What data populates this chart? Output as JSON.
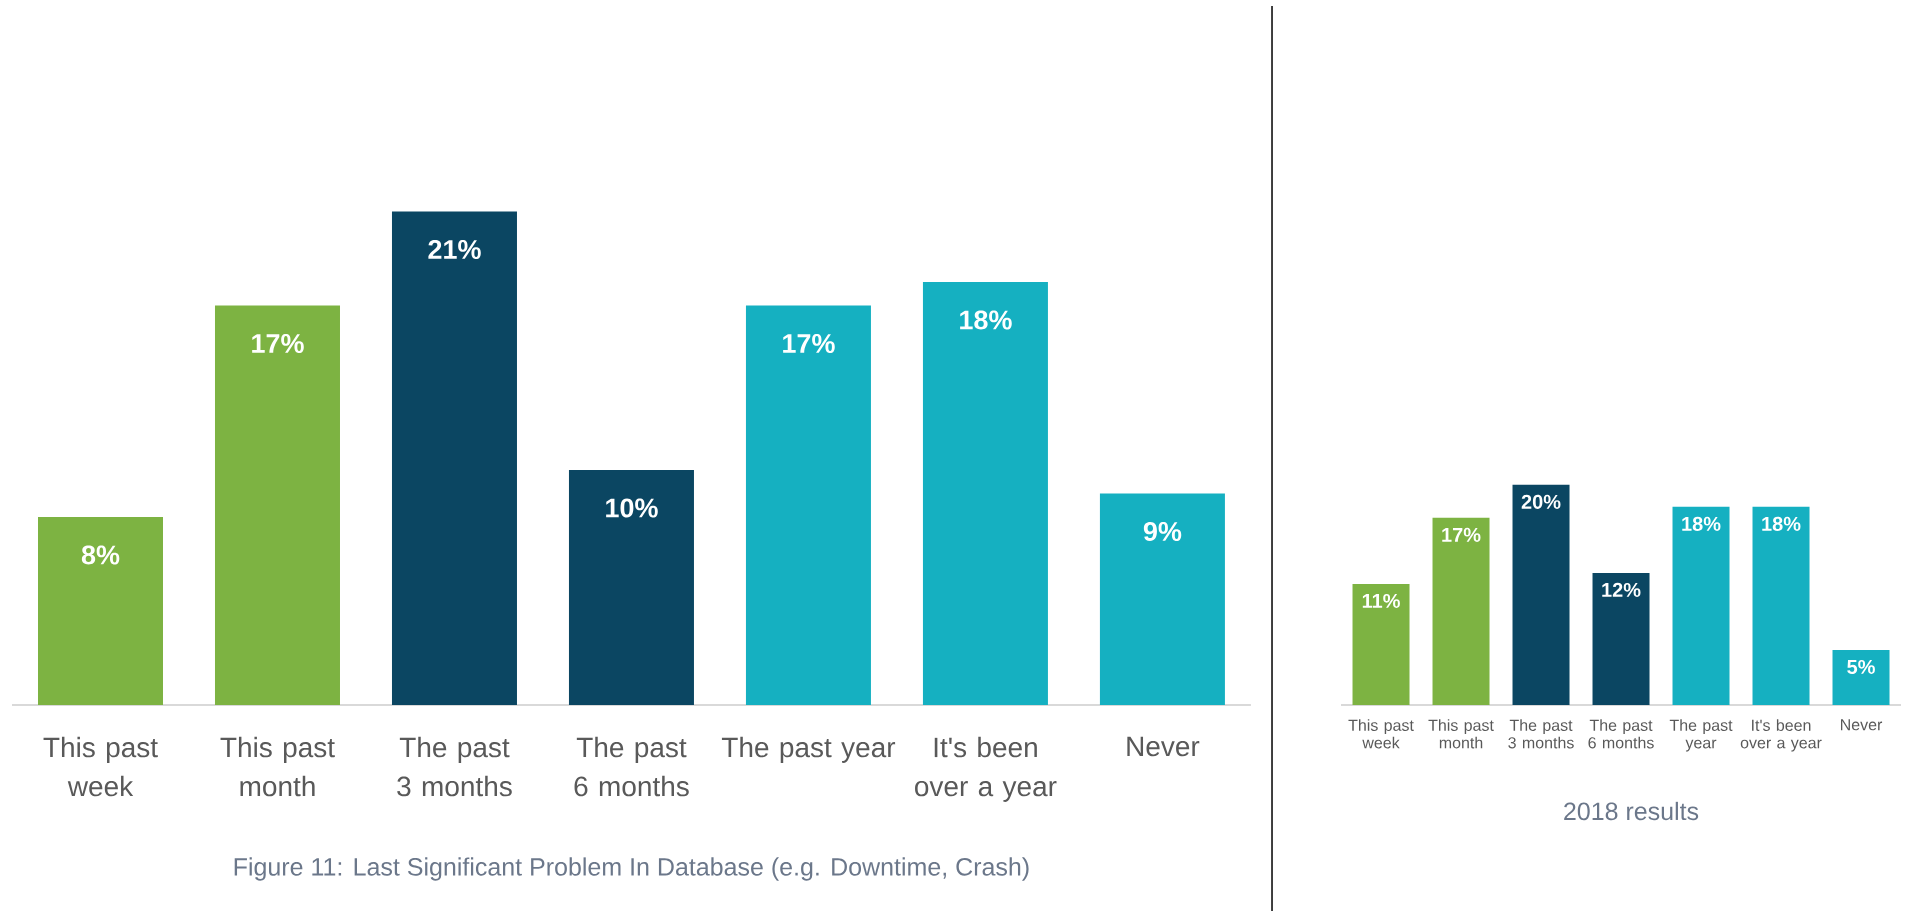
{
  "chart_data": [
    {
      "type": "bar",
      "title": "Figure 11: Last Significant Problem In Database (e.g. Downtime, Crash)",
      "categories": [
        "This past week",
        "This past month",
        "The past 3 months",
        "The past 6 months",
        "The past year",
        "It's been over a year",
        "Never"
      ],
      "values": [
        8,
        17,
        21,
        10,
        17,
        18,
        9
      ],
      "colors": [
        "#7db342",
        "#7db342",
        "#0b4662",
        "#0b4662",
        "#15b0c1",
        "#15b0c1",
        "#15b0c1"
      ],
      "value_labels": [
        "8%",
        "17%",
        "21%",
        "10%",
        "17%",
        "18%",
        "9%"
      ]
    },
    {
      "type": "bar",
      "title": "2018 results",
      "categories": [
        "This past week",
        "This past month",
        "The past 3 months",
        "The past 6 months",
        "The past year",
        "It's been over a year",
        "Never"
      ],
      "values": [
        11,
        17,
        20,
        12,
        18,
        18,
        5
      ],
      "colors": [
        "#7db342",
        "#7db342",
        "#0b4662",
        "#0b4662",
        "#15b0c1",
        "#15b0c1",
        "#15b0c1"
      ],
      "value_labels": [
        "11%",
        "17%",
        "20%",
        "12%",
        "18%",
        "18%",
        "5%"
      ]
    }
  ]
}
